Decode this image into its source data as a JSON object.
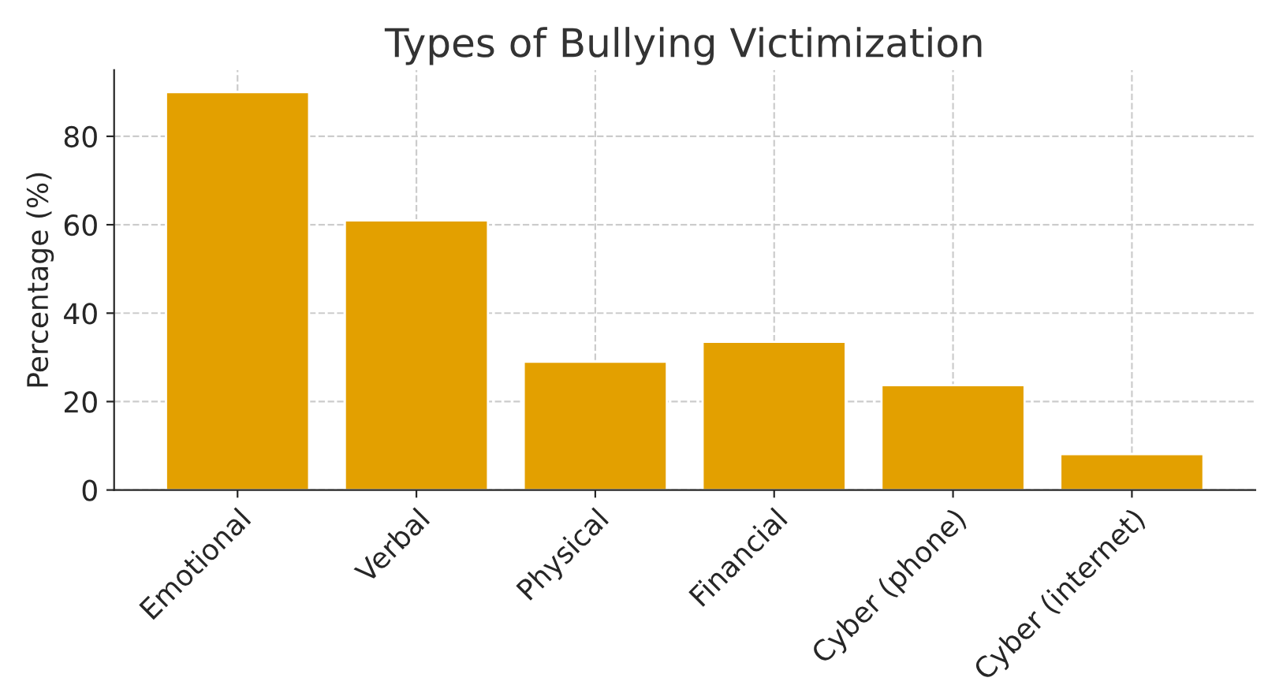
{
  "chart_data": {
    "type": "bar",
    "title": "Types of Bullying Victimization",
    "ylabel": "Percentage (%)",
    "categories": [
      "Emotional",
      "Verbal",
      "Physical",
      "Financial",
      "Cyber (phone)",
      "Cyber (internet)"
    ],
    "values": [
      90,
      61,
      29,
      33.5,
      23.7,
      8.1
    ],
    "color": "#e3a000",
    "ylim": [
      0,
      95
    ],
    "yticks": [
      0,
      20,
      40,
      60,
      80
    ],
    "grid": true
  }
}
